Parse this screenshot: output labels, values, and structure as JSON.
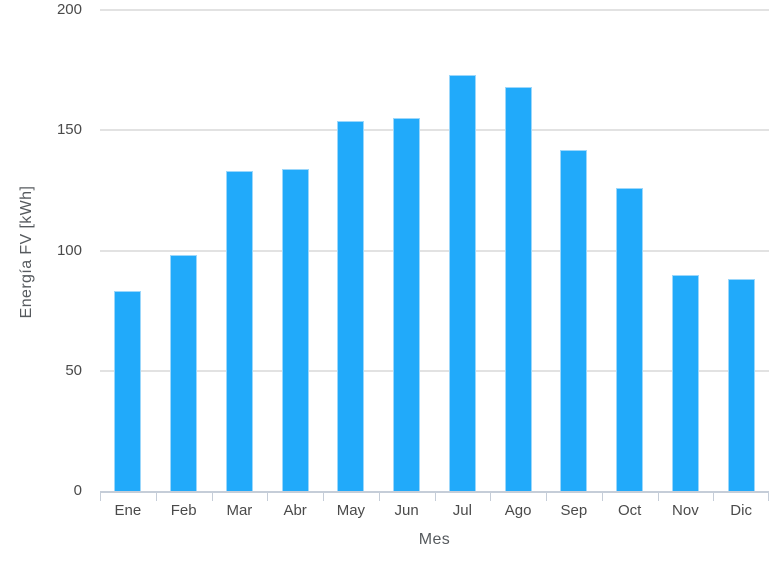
{
  "chart_data": {
    "type": "bar",
    "title": "",
    "xlabel": "Mes",
    "ylabel": "Energía FV [kWh]",
    "categories": [
      "Ene",
      "Feb",
      "Mar",
      "Abr",
      "May",
      "Jun",
      "Jul",
      "Ago",
      "Sep",
      "Oct",
      "Nov",
      "Dic"
    ],
    "values": [
      83,
      98,
      133,
      134,
      154,
      155,
      173,
      168,
      142,
      126,
      90,
      88
    ],
    "ylim": [
      0,
      200
    ],
    "yticks": [
      0,
      50,
      100,
      150,
      200
    ],
    "grid": true,
    "legend": "none",
    "colors": {
      "bar_fill": "#21aafa",
      "bar_stroke": "#9bd7fb",
      "gridline": "#e2e2e2",
      "axis_line": "#c5cdd8",
      "tick_label_text": "#4a4a4a",
      "axis_title_text": "#565a5e",
      "background": "#ffffff"
    }
  }
}
